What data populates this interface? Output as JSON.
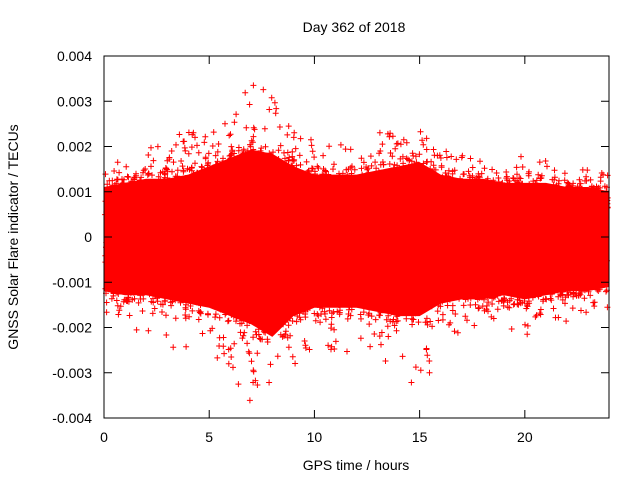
{
  "chart_data": {
    "type": "scatter",
    "title": "Day 362 of 2018",
    "xlabel": "GPS time / hours",
    "ylabel": "GNSS Solar Flare indicator / TECUs",
    "xlim": [
      0,
      24
    ],
    "ylim": [
      -0.004,
      0.004
    ],
    "x_ticks": [
      0,
      5,
      10,
      15,
      20
    ],
    "x_tick_labels": [
      "0",
      "5",
      "10",
      "15",
      "20"
    ],
    "y_ticks": [
      -0.004,
      -0.003,
      -0.002,
      -0.001,
      0,
      0.001,
      0.002,
      0.003,
      0.004
    ],
    "y_tick_labels": [
      "-0.004",
      "-0.003",
      "-0.002",
      "-0.001",
      "0",
      "0.001",
      "0.002",
      "0.003",
      "0.004"
    ],
    "marker": "+",
    "series_color": "#ff0000",
    "grid": false,
    "legend": "none",
    "envelope": [
      {
        "x": 0,
        "upper": 0.0012,
        "lower": -0.0013,
        "max": 0.0016,
        "min": -0.0018
      },
      {
        "x": 1,
        "upper": 0.0013,
        "lower": -0.0014,
        "max": 0.0019,
        "min": -0.002
      },
      {
        "x": 2,
        "upper": 0.0014,
        "lower": -0.0014,
        "max": 0.0021,
        "min": -0.0021
      },
      {
        "x": 3,
        "upper": 0.0014,
        "lower": -0.0015,
        "max": 0.0022,
        "min": -0.0024
      },
      {
        "x": 4,
        "upper": 0.0015,
        "lower": -0.0016,
        "max": 0.0024,
        "min": -0.0026
      },
      {
        "x": 5,
        "upper": 0.0017,
        "lower": -0.0017,
        "max": 0.0026,
        "min": -0.0028
      },
      {
        "x": 6,
        "upper": 0.0019,
        "lower": -0.0019,
        "max": 0.003,
        "min": -0.0031
      },
      {
        "x": 7,
        "upper": 0.0021,
        "lower": -0.0021,
        "max": 0.0034,
        "min": -0.0037
      },
      {
        "x": 8,
        "upper": 0.002,
        "lower": -0.0024,
        "max": 0.0033,
        "min": -0.0038
      },
      {
        "x": 9,
        "upper": 0.0017,
        "lower": -0.0019,
        "max": 0.0025,
        "min": -0.0031
      },
      {
        "x": 10,
        "upper": 0.0015,
        "lower": -0.0017,
        "max": 0.0022,
        "min": -0.003
      },
      {
        "x": 11,
        "upper": 0.0015,
        "lower": -0.0017,
        "max": 0.0021,
        "min": -0.0027
      },
      {
        "x": 12,
        "upper": 0.0015,
        "lower": -0.0017,
        "max": 0.002,
        "min": -0.0025
      },
      {
        "x": 13,
        "upper": 0.0016,
        "lower": -0.0018,
        "max": 0.0023,
        "min": -0.0027
      },
      {
        "x": 14,
        "upper": 0.0017,
        "lower": -0.0019,
        "max": 0.0025,
        "min": -0.0032
      },
      {
        "x": 15,
        "upper": 0.0018,
        "lower": -0.0019,
        "max": 0.0026,
        "min": -0.0036
      },
      {
        "x": 16,
        "upper": 0.0015,
        "lower": -0.0016,
        "max": 0.002,
        "min": -0.0024
      },
      {
        "x": 17,
        "upper": 0.0014,
        "lower": -0.0015,
        "max": 0.0019,
        "min": -0.0021
      },
      {
        "x": 18,
        "upper": 0.0014,
        "lower": -0.0015,
        "max": 0.0018,
        "min": -0.002
      },
      {
        "x": 19,
        "upper": 0.0013,
        "lower": -0.0014,
        "max": 0.0017,
        "min": -0.0019
      },
      {
        "x": 20,
        "upper": 0.0013,
        "lower": -0.0015,
        "max": 0.0018,
        "min": -0.0023
      },
      {
        "x": 21,
        "upper": 0.0013,
        "lower": -0.0014,
        "max": 0.0017,
        "min": -0.002
      },
      {
        "x": 22,
        "upper": 0.0012,
        "lower": -0.0013,
        "max": 0.0016,
        "min": -0.0019
      },
      {
        "x": 23,
        "upper": 0.0012,
        "lower": -0.0013,
        "max": 0.0015,
        "min": -0.0018
      },
      {
        "x": 24,
        "upper": 0.0011,
        "lower": -0.0012,
        "max": 0.0015,
        "min": -0.0017
      }
    ]
  }
}
